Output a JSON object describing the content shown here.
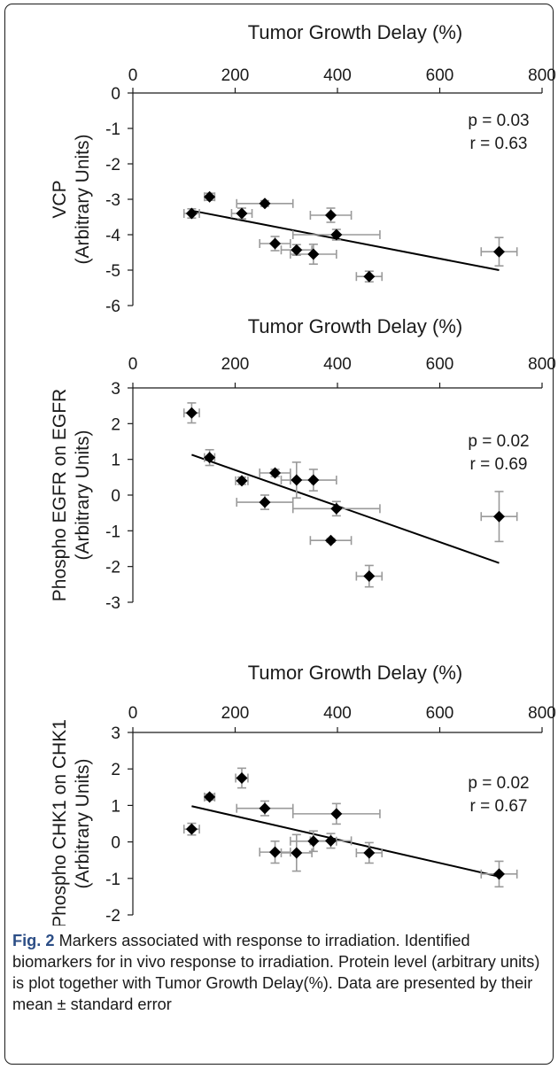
{
  "caption": {
    "label": "Fig. 2",
    "text": "Markers associated with response to irradiation. Identified biomarkers for in vivo response to irradiation. Protein level (arbitrary units) is plot together with Tumor Growth Delay(%). Data are presented by their mean ± standard error"
  },
  "chart_data": [
    {
      "type": "scatter",
      "title": "",
      "xlabel": "Tumor Growth Delay (%)",
      "ylabel": [
        "VCP",
        "(Arbitrary Units)"
      ],
      "xlim": [
        0,
        800
      ],
      "ylim": [
        -6,
        0
      ],
      "xticks": [
        0,
        200,
        400,
        600,
        800
      ],
      "yticks": [
        0,
        -1,
        -2,
        -3,
        -4,
        -5,
        -6
      ],
      "stats": [
        "p = 0.03",
        "r = 0.63"
      ],
      "points": [
        {
          "x": 115,
          "y": -3.4,
          "xerr": 15,
          "yerr": 0.13
        },
        {
          "x": 150,
          "y": -2.93,
          "xerr": 10,
          "yerr": 0.1
        },
        {
          "x": 213,
          "y": -3.4,
          "xerr": 20,
          "yerr": 0.15
        },
        {
          "x": 258,
          "y": -3.12,
          "xerr": 55,
          "yerr": 0.08
        },
        {
          "x": 278,
          "y": -4.25,
          "xerr": 30,
          "yerr": 0.2
        },
        {
          "x": 320,
          "y": -4.43,
          "xerr": 30,
          "yerr": 0.15
        },
        {
          "x": 353,
          "y": -4.55,
          "xerr": 45,
          "yerr": 0.28
        },
        {
          "x": 387,
          "y": -3.45,
          "xerr": 40,
          "yerr": 0.2
        },
        {
          "x": 398,
          "y": -4.0,
          "xerr": 85,
          "yerr": 0.15
        },
        {
          "x": 462,
          "y": -5.18,
          "xerr": 25,
          "yerr": 0.15
        },
        {
          "x": 716,
          "y": -4.48,
          "xerr": 35,
          "yerr": 0.4
        }
      ],
      "fit": [
        [
          115,
          -3.32
        ],
        [
          716,
          -5.0
        ]
      ]
    },
    {
      "type": "scatter",
      "title": "",
      "xlabel": "Tumor Growth Delay (%)",
      "ylabel": [
        "Phospho EGFR on EGFR",
        "(Arbitrary Units)"
      ],
      "xlim": [
        0,
        800
      ],
      "ylim": [
        -3,
        3
      ],
      "xticks": [
        0,
        200,
        400,
        600,
        800
      ],
      "yticks": [
        3,
        2,
        1,
        0,
        -1,
        -2,
        -3
      ],
      "stats": [
        "p = 0.02",
        "r = 0.69"
      ],
      "points": [
        {
          "x": 115,
          "y": 2.3,
          "xerr": 15,
          "yerr": 0.28
        },
        {
          "x": 150,
          "y": 1.05,
          "xerr": 10,
          "yerr": 0.22
        },
        {
          "x": 213,
          "y": 0.4,
          "xerr": 12,
          "yerr": 0.1
        },
        {
          "x": 258,
          "y": -0.2,
          "xerr": 55,
          "yerr": 0.2
        },
        {
          "x": 278,
          "y": 0.62,
          "xerr": 30,
          "yerr": 0.1
        },
        {
          "x": 320,
          "y": 0.42,
          "xerr": 30,
          "yerr": 0.5
        },
        {
          "x": 353,
          "y": 0.42,
          "xerr": 45,
          "yerr": 0.3
        },
        {
          "x": 387,
          "y": -1.27,
          "xerr": 40,
          "yerr": 0.05
        },
        {
          "x": 398,
          "y": -0.38,
          "xerr": 85,
          "yerr": 0.2
        },
        {
          "x": 462,
          "y": -2.27,
          "xerr": 25,
          "yerr": 0.3
        },
        {
          "x": 716,
          "y": -0.6,
          "xerr": 35,
          "yerr": 0.7
        }
      ],
      "fit": [
        [
          115,
          1.13
        ],
        [
          716,
          -1.9
        ]
      ]
    },
    {
      "type": "scatter",
      "title": "",
      "xlabel": "Tumor Growth Delay (%)",
      "ylabel": [
        "Phospho CHK1 on CHK1",
        "(Arbitrary Units)"
      ],
      "xlim": [
        0,
        800
      ],
      "ylim": [
        -2,
        3
      ],
      "xticks": [
        0,
        200,
        400,
        600,
        800
      ],
      "yticks": [
        3,
        2,
        1,
        0,
        -1,
        -2
      ],
      "stats": [
        "p = 0.02",
        "r = 0.67"
      ],
      "points": [
        {
          "x": 115,
          "y": 0.35,
          "xerr": 15,
          "yerr": 0.16
        },
        {
          "x": 150,
          "y": 1.23,
          "xerr": 10,
          "yerr": 0.08
        },
        {
          "x": 213,
          "y": 1.75,
          "xerr": 12,
          "yerr": 0.27
        },
        {
          "x": 258,
          "y": 0.92,
          "xerr": 55,
          "yerr": 0.2
        },
        {
          "x": 278,
          "y": -0.28,
          "xerr": 30,
          "yerr": 0.3
        },
        {
          "x": 320,
          "y": -0.3,
          "xerr": 30,
          "yerr": 0.5
        },
        {
          "x": 353,
          "y": 0.02,
          "xerr": 45,
          "yerr": 0.28
        },
        {
          "x": 387,
          "y": 0.03,
          "xerr": 40,
          "yerr": 0.2
        },
        {
          "x": 398,
          "y": 0.77,
          "xerr": 85,
          "yerr": 0.28
        },
        {
          "x": 462,
          "y": -0.3,
          "xerr": 25,
          "yerr": 0.28
        },
        {
          "x": 716,
          "y": -0.88,
          "xerr": 35,
          "yerr": 0.35
        }
      ],
      "fit": [
        [
          115,
          0.98
        ],
        [
          716,
          -0.95
        ]
      ]
    }
  ]
}
